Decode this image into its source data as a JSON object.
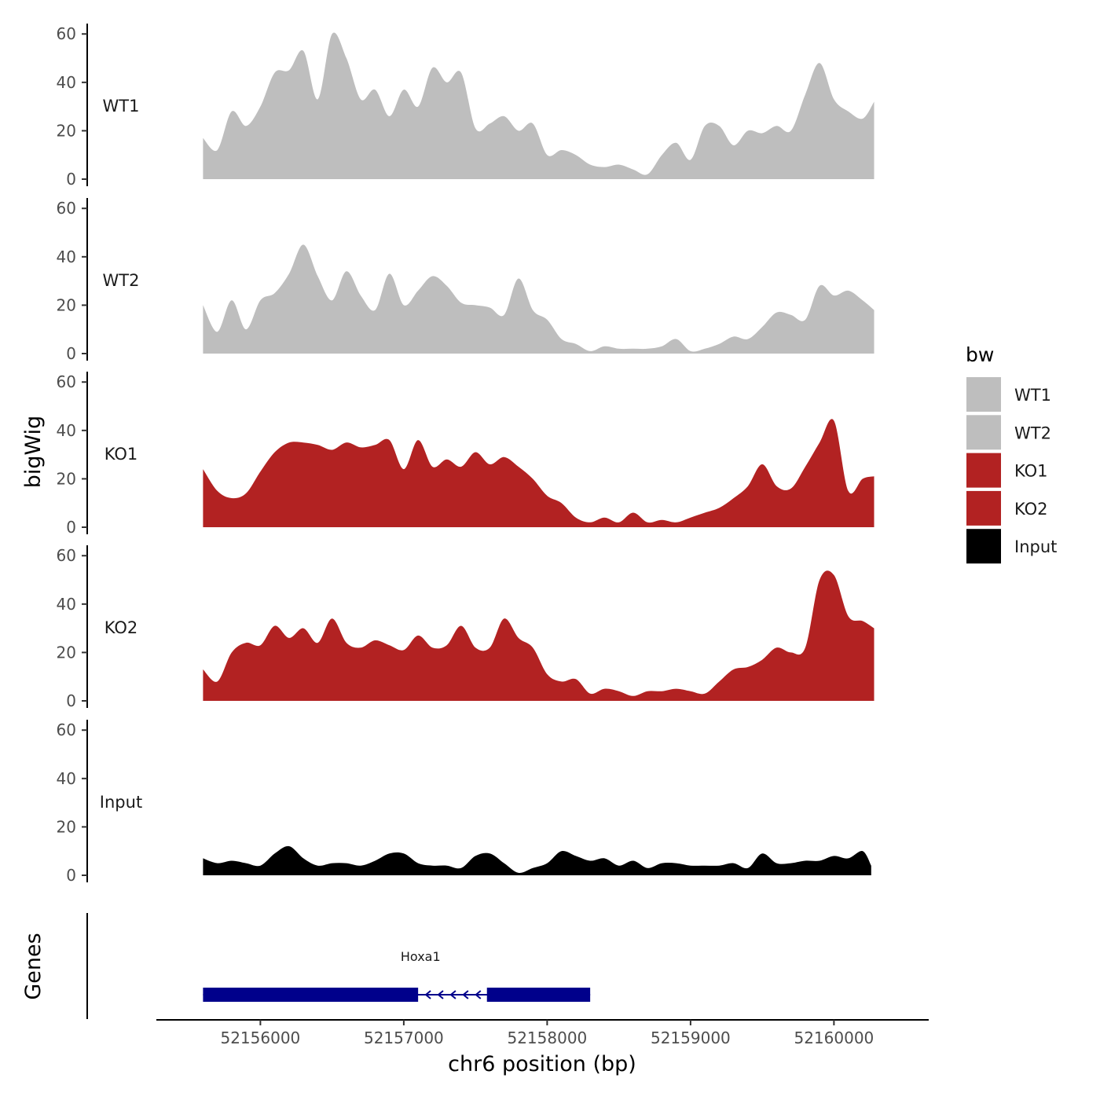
{
  "chart_data": {
    "type": "area",
    "subtype": "genome-browser-tracks",
    "title": "",
    "xlabel": "chr6 position (bp)",
    "ylabel": "bigWig",
    "gene_panel_label": "Genes",
    "xlim": [
      52155280,
      52160650
    ],
    "ylim": [
      0,
      63
    ],
    "xticks": [
      52156000,
      52157000,
      52158000,
      52159000,
      52160000
    ],
    "xtick_labels": [
      "52156000",
      "52157000",
      "52158000",
      "52159000",
      "52160000"
    ],
    "yticks": [
      0,
      20,
      40,
      60
    ],
    "ytick_labels": [
      "0",
      "20",
      "40",
      "60"
    ],
    "legend": {
      "title": "bw",
      "position": "right",
      "entries": [
        {
          "label": "WT1",
          "color": "#bebebe"
        },
        {
          "label": "WT2",
          "color": "#bebebe"
        },
        {
          "label": "KO1",
          "color": "#b22222"
        },
        {
          "label": "KO2",
          "color": "#b22222"
        },
        {
          "label": "Input",
          "color": "#000000"
        }
      ]
    },
    "tracks": [
      {
        "name": "WT1",
        "color": "#bebebe",
        "x": [
          52155600,
          52155700,
          52155800,
          52155900,
          52156000,
          52156100,
          52156200,
          52156300,
          52156400,
          52156500,
          52156600,
          52156700,
          52156800,
          52156900,
          52157000,
          52157100,
          52157200,
          52157300,
          52157400,
          52157500,
          52157600,
          52157700,
          52157800,
          52157900,
          52158000,
          52158100,
          52158200,
          52158300,
          52158400,
          52158500,
          52158600,
          52158700,
          52158800,
          52158900,
          52159000,
          52159100,
          52159200,
          52159300,
          52159400,
          52159500,
          52159600,
          52159700,
          52159800,
          52159900,
          52160000,
          52160100,
          52160200,
          52160280
        ],
        "y": [
          17,
          12,
          28,
          22,
          30,
          44,
          45,
          53,
          33,
          60,
          50,
          33,
          37,
          26,
          37,
          30,
          46,
          40,
          44,
          21,
          23,
          26,
          20,
          23,
          10,
          12,
          10,
          6,
          5,
          6,
          4,
          2,
          10,
          15,
          8,
          22,
          22,
          14,
          20,
          19,
          22,
          20,
          35,
          48,
          33,
          28,
          25,
          32
        ]
      },
      {
        "name": "WT2",
        "color": "#bebebe",
        "x": [
          52155600,
          52155700,
          52155800,
          52155900,
          52156000,
          52156100,
          52156200,
          52156300,
          52156400,
          52156500,
          52156600,
          52156700,
          52156800,
          52156900,
          52157000,
          52157100,
          52157200,
          52157300,
          52157400,
          52157500,
          52157600,
          52157700,
          52157800,
          52157900,
          52158000,
          52158100,
          52158200,
          52158300,
          52158400,
          52158500,
          52158600,
          52158700,
          52158800,
          52158900,
          52159000,
          52159100,
          52159200,
          52159300,
          52159400,
          52159500,
          52159600,
          52159700,
          52159800,
          52159900,
          52160000,
          52160100,
          52160200,
          52160280
        ],
        "y": [
          20,
          9,
          22,
          10,
          22,
          25,
          33,
          45,
          32,
          22,
          34,
          24,
          18,
          33,
          20,
          26,
          32,
          28,
          21,
          20,
          19,
          16,
          31,
          18,
          14,
          6,
          4,
          1,
          3,
          2,
          2,
          2,
          3,
          6,
          1,
          2,
          4,
          7,
          6,
          11,
          17,
          16,
          14,
          28,
          24,
          26,
          22,
          18
        ]
      },
      {
        "name": "KO1",
        "color": "#b22222",
        "x": [
          52155600,
          52155700,
          52155800,
          52155900,
          52156000,
          52156100,
          52156200,
          52156300,
          52156400,
          52156500,
          52156600,
          52156700,
          52156800,
          52156900,
          52157000,
          52157100,
          52157200,
          52157300,
          52157400,
          52157500,
          52157600,
          52157700,
          52157800,
          52157900,
          52158000,
          52158100,
          52158200,
          52158300,
          52158400,
          52158500,
          52158600,
          52158700,
          52158800,
          52158900,
          52159000,
          52159100,
          52159200,
          52159300,
          52159400,
          52159500,
          52159600,
          52159700,
          52159800,
          52159900,
          52160000,
          52160100,
          52160200,
          52160280
        ],
        "y": [
          24,
          15,
          12,
          14,
          23,
          31,
          35,
          35,
          34,
          32,
          35,
          33,
          34,
          36,
          24,
          36,
          25,
          28,
          25,
          31,
          26,
          29,
          25,
          20,
          13,
          10,
          4,
          2,
          4,
          2,
          6,
          2,
          3,
          2,
          4,
          6,
          8,
          12,
          17,
          26,
          17,
          16,
          25,
          35,
          44,
          15,
          20,
          21
        ]
      },
      {
        "name": "KO2",
        "color": "#b22222",
        "x": [
          52155600,
          52155700,
          52155800,
          52155900,
          52156000,
          52156100,
          52156200,
          52156300,
          52156400,
          52156500,
          52156600,
          52156700,
          52156800,
          52156900,
          52157000,
          52157100,
          52157200,
          52157300,
          52157400,
          52157500,
          52157600,
          52157700,
          52157800,
          52157900,
          52158000,
          52158100,
          52158200,
          52158300,
          52158400,
          52158500,
          52158600,
          52158700,
          52158800,
          52158900,
          52159000,
          52159100,
          52159200,
          52159300,
          52159400,
          52159500,
          52159600,
          52159700,
          52159800,
          52159900,
          52160000,
          52160100,
          52160200,
          52160280
        ],
        "y": [
          13,
          8,
          20,
          24,
          23,
          31,
          26,
          30,
          24,
          34,
          24,
          22,
          25,
          23,
          21,
          27,
          22,
          23,
          31,
          22,
          22,
          34,
          26,
          22,
          11,
          8,
          9,
          3,
          5,
          4,
          2,
          4,
          4,
          5,
          4,
          3,
          8,
          13,
          14,
          17,
          22,
          20,
          22,
          50,
          52,
          35,
          33,
          30
        ]
      },
      {
        "name": "Input",
        "color": "#000000",
        "x": [
          52155600,
          52155700,
          52155800,
          52155900,
          52156000,
          52156100,
          52156200,
          52156300,
          52156400,
          52156500,
          52156600,
          52156700,
          52156800,
          52156900,
          52157000,
          52157100,
          52157200,
          52157300,
          52157400,
          52157500,
          52157600,
          52157700,
          52157800,
          52157900,
          52158000,
          52158100,
          52158200,
          52158300,
          52158400,
          52158500,
          52158600,
          52158700,
          52158800,
          52158900,
          52159000,
          52159100,
          52159200,
          52159300,
          52159400,
          52159500,
          52159600,
          52159700,
          52159800,
          52159900,
          52160000,
          52160100,
          52160200,
          52160260
        ],
        "y": [
          7,
          5,
          6,
          5,
          4,
          9,
          12,
          7,
          4,
          5,
          5,
          4,
          6,
          9,
          9,
          5,
          4,
          4,
          3,
          8,
          9,
          5,
          1,
          3,
          5,
          10,
          8,
          6,
          7,
          4,
          6,
          3,
          5,
          5,
          4,
          4,
          4,
          5,
          3,
          9,
          5,
          5,
          6,
          6,
          8,
          7,
          10,
          4
        ]
      }
    ],
    "genes": [
      {
        "name": "Hoxa1",
        "strand": "-",
        "color": "#00008b",
        "start": 52155600,
        "end": 52158300,
        "exons": [
          [
            52155600,
            52157100
          ],
          [
            52157580,
            52158300
          ]
        ]
      }
    ]
  }
}
